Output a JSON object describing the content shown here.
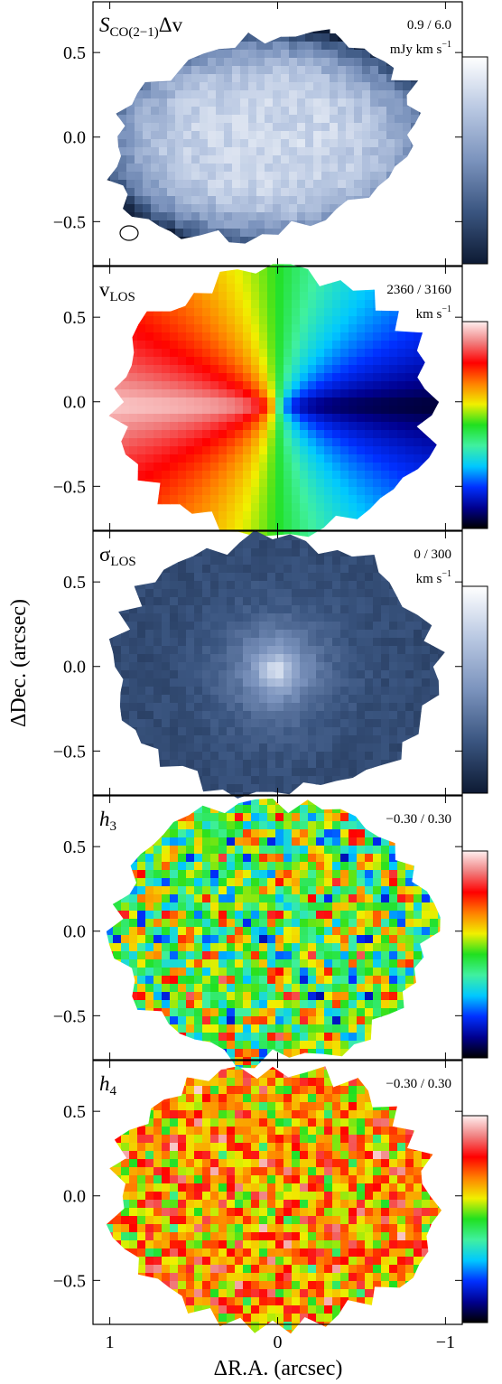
{
  "chart_data": [
    {
      "type": "heatmap",
      "label": {
        "symbol": "S",
        "subscript": "CO(2−1)",
        "suffix": "Δv"
      },
      "range_label": "0.9 / 6.0",
      "unit": {
        "text": "mJy km s",
        "sup": "−1"
      },
      "colorbar_colors": [
        "#0d1a33",
        "#3a5580",
        "#7b93bd",
        "#b9c8e2",
        "#ffffff"
      ],
      "xlim": [
        1.1,
        -1.1
      ],
      "ylim": [
        -0.76,
        0.8
      ],
      "xticks": [
        1,
        0,
        -1
      ],
      "yticks": [
        {
          "value": 0.5,
          "label": "0.5"
        },
        {
          "value": 0.0,
          "label": "0.0"
        },
        {
          "value": -0.5,
          "label": "−0.5"
        }
      ]
    },
    {
      "type": "heatmap",
      "label": {
        "symbol": "v",
        "subscript": "LOS"
      },
      "range_label": "2360 / 3160",
      "unit": {
        "text": "km s",
        "sup": "−1"
      },
      "colorbar_colors": [
        "#000000",
        "#00008f",
        "#0030ff",
        "#00c8ff",
        "#40f0a0",
        "#20e020",
        "#f0f000",
        "#ff8000",
        "#ff0000",
        "#f08080",
        "#fff0f0"
      ],
      "xlim": [
        1.1,
        -1.1
      ],
      "ylim": [
        -0.76,
        0.8
      ],
      "xticks": [
        1,
        0,
        -1
      ],
      "yticks": [
        {
          "value": 0.5,
          "label": "0.5"
        },
        {
          "value": 0.0,
          "label": "0.0"
        },
        {
          "value": -0.5,
          "label": "−0.5"
        }
      ]
    },
    {
      "type": "heatmap",
      "label": {
        "symbol": "σ",
        "subscript": "LOS"
      },
      "range_label": "0 / 300",
      "unit": {
        "text": "km s",
        "sup": "−1"
      },
      "colorbar_colors": [
        "#0d1a33",
        "#3a5580",
        "#7b93bd",
        "#b9c8e2",
        "#ffffff"
      ],
      "ylabel": "ΔDec. (arcsec)",
      "xlim": [
        1.1,
        -1.1
      ],
      "ylim": [
        -0.76,
        0.8
      ],
      "xticks": [
        1,
        0,
        -1
      ],
      "yticks": [
        {
          "value": 0.5,
          "label": "0.5"
        },
        {
          "value": 0.0,
          "label": "0.0"
        },
        {
          "value": -0.5,
          "label": "−0.5"
        }
      ]
    },
    {
      "type": "heatmap",
      "label": {
        "symbol": "h",
        "subscript": "3"
      },
      "range_label": "−0.30 / 0.30",
      "colorbar_colors": [
        "#000000",
        "#00008f",
        "#0030ff",
        "#00c8ff",
        "#40f0a0",
        "#20e020",
        "#f0f000",
        "#ff8000",
        "#ff0000",
        "#f08080",
        "#fff0f0"
      ],
      "xlim": [
        1.1,
        -1.1
      ],
      "ylim": [
        -0.76,
        0.8
      ],
      "xticks": [
        1,
        0,
        -1
      ],
      "yticks": [
        {
          "value": 0.5,
          "label": "0.5"
        },
        {
          "value": 0.0,
          "label": "0.0"
        },
        {
          "value": -0.5,
          "label": "−0.5"
        }
      ]
    },
    {
      "type": "heatmap",
      "label": {
        "symbol": "h",
        "subscript": "4"
      },
      "range_label": "−0.30 / 0.30",
      "colorbar_colors": [
        "#000000",
        "#00008f",
        "#0030ff",
        "#00c8ff",
        "#40f0a0",
        "#20e020",
        "#f0f000",
        "#ff8000",
        "#ff0000",
        "#f08080",
        "#fff0f0"
      ],
      "xlabel": "ΔR.A. (arcsec)",
      "xlim": [
        1.1,
        -1.1
      ],
      "ylim": [
        -0.76,
        0.8
      ],
      "xticks": [
        {
          "value": 1,
          "label": "1"
        },
        {
          "value": 0,
          "label": "0"
        },
        {
          "value": -1,
          "label": "−1"
        }
      ],
      "yticks": [
        {
          "value": 0.5,
          "label": "0.5"
        },
        {
          "value": 0.0,
          "label": "0.0"
        },
        {
          "value": -0.5,
          "label": "−0.5"
        }
      ]
    }
  ]
}
